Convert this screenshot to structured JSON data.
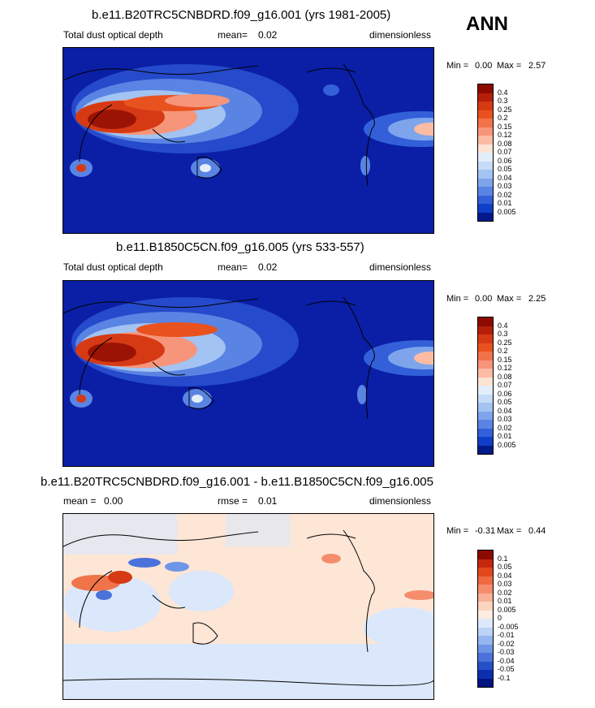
{
  "season": "ANN",
  "panels": [
    {
      "title": "b.e11.B20TRC5CNBDRD.f09_g16.001 (yrs 1981-2005)",
      "variable": "Total dust optical depth",
      "stat_label": "mean=",
      "stat_value": "0.02",
      "units": "dimensionless",
      "min_label": "Min =",
      "min_value": "0.00",
      "max_label": "Max =",
      "max_value": "2.57",
      "colorbar_levels": [
        "0.4",
        "0.3",
        "0.25",
        "0.2",
        "0.15",
        "0.12",
        "0.08",
        "0.07",
        "0.06",
        "0.05",
        "0.04",
        "0.03",
        "0.02",
        "0.01",
        "0.005"
      ],
      "colorbar_colors": [
        "#8c0a00",
        "#b51f0a",
        "#d63a14",
        "#e8521e",
        "#f0734a",
        "#f7957a",
        "#fbbca3",
        "#fde4d2",
        "#e3eefb",
        "#c5dbf7",
        "#a3c3f2",
        "#7ea5ec",
        "#5a84e3",
        "#3360d8",
        "#0f3fc6",
        "#021a8a"
      ]
    },
    {
      "title": "b.e11.B1850C5CN.f09_g16.005 (yrs 533-557)",
      "variable": "Total dust optical depth",
      "stat_label": "mean=",
      "stat_value": "0.02",
      "units": "dimensionless",
      "min_label": "Min =",
      "min_value": "0.00",
      "max_label": "Max =",
      "max_value": "2.25",
      "colorbar_levels": [
        "0.4",
        "0.3",
        "0.25",
        "0.2",
        "0.15",
        "0.12",
        "0.08",
        "0.07",
        "0.06",
        "0.05",
        "0.04",
        "0.03",
        "0.02",
        "0.01",
        "0.005"
      ],
      "colorbar_colors": [
        "#8c0a00",
        "#b51f0a",
        "#d63a14",
        "#e8521e",
        "#f0734a",
        "#f7957a",
        "#fbbca3",
        "#fde4d2",
        "#e3eefb",
        "#c5dbf7",
        "#a3c3f2",
        "#7ea5ec",
        "#5a84e3",
        "#3360d8",
        "#0f3fc6",
        "#021a8a"
      ]
    },
    {
      "title": "b.e11.B20TRC5CNBDRD.f09_g16.001 - b.e11.B1850C5CN.f09_g16.005",
      "mean_label": "mean =",
      "mean_value": "0.00",
      "rmse_label": "rmse =",
      "rmse_value": "0.01",
      "units": "dimensionless",
      "min_label": "Min =",
      "min_value": "-0.31",
      "max_label": "Max =",
      "max_value": "0.44",
      "colorbar_levels": [
        "0.1",
        "0.05",
        "0.04",
        "0.03",
        "0.02",
        "0.01",
        "0.005",
        "0",
        "-0.005",
        "-0.01",
        "-0.02",
        "-0.03",
        "-0.04",
        "-0.05",
        "-0.1"
      ],
      "colorbar_colors": [
        "#8c0a00",
        "#c4270e",
        "#e2481c",
        "#ef6a40",
        "#f58d6c",
        "#f9b096",
        "#fcd3c0",
        "#fdece2",
        "#dde9fb",
        "#bcd3f6",
        "#95b5ef",
        "#6f95e6",
        "#4a72da",
        "#2650c8",
        "#0b2fb0",
        "#00137f"
      ]
    }
  ],
  "colors": {
    "map_background_abs": "#0a1fa6",
    "map_background_diff": "#fde6d6",
    "coastline": "#000000"
  }
}
